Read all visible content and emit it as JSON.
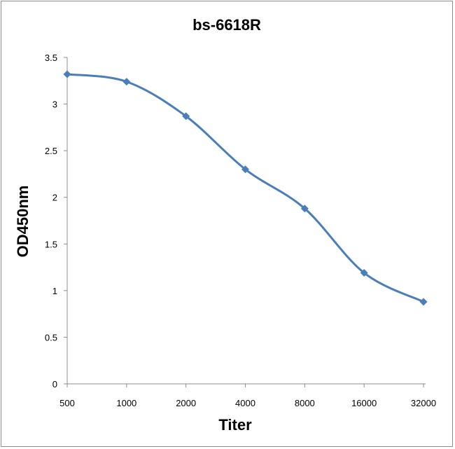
{
  "chart_data": {
    "type": "line",
    "title": "bs-6618R",
    "xlabel": "Titer",
    "ylabel": "OD450nm",
    "categories": [
      "500",
      "1000",
      "2000",
      "4000",
      "8000",
      "16000",
      "32000"
    ],
    "series": [
      {
        "values": [
          3.32,
          3.24,
          2.87,
          2.3,
          1.88,
          1.19,
          0.88
        ]
      }
    ],
    "ylim": [
      0,
      3.5
    ],
    "yticks": [
      "0",
      "0.5",
      "1",
      "1.5",
      "2",
      "2.5",
      "3",
      "3.5"
    ],
    "grid": false,
    "legend": "none",
    "series_color": "#4a7ebb"
  }
}
